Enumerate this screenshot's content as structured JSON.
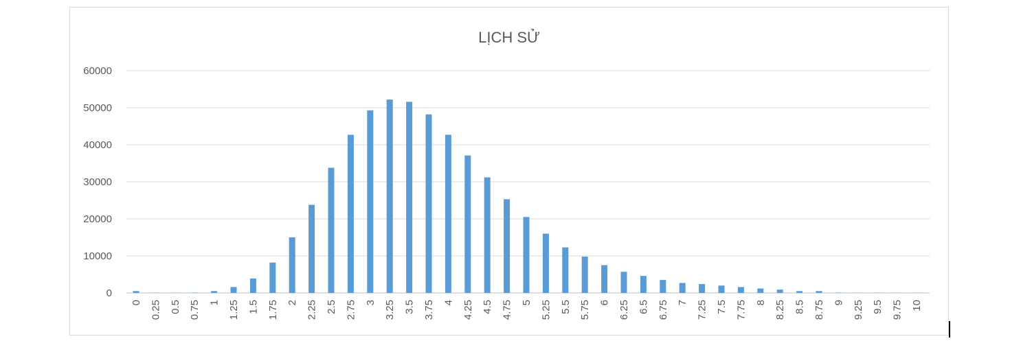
{
  "chart_data": {
    "type": "bar",
    "title": "LỊCH SỬ",
    "xlabel": "",
    "ylabel": "",
    "categories": [
      "0",
      "0.25",
      "0.5",
      "0.75",
      "1",
      "1.25",
      "1.5",
      "1.75",
      "2",
      "2.25",
      "2.5",
      "2.75",
      "3",
      "3.25",
      "3.5",
      "3.75",
      "4",
      "4.25",
      "4.5",
      "4.75",
      "5",
      "5.25",
      "5.5",
      "5.75",
      "6",
      "6.25",
      "6.5",
      "6.75",
      "7",
      "7.25",
      "7.5",
      "7.75",
      "8",
      "8.25",
      "8.5",
      "8.75",
      "9",
      "9.25",
      "9.5",
      "9.75",
      "10"
    ],
    "values": [
      500,
      50,
      50,
      100,
      500,
      1600,
      3900,
      8200,
      15000,
      23800,
      33800,
      42700,
      49300,
      52200,
      51600,
      48200,
      42700,
      37100,
      31200,
      25300,
      20500,
      16000,
      12300,
      9800,
      7500,
      5700,
      4600,
      3500,
      2700,
      2400,
      2000,
      1600,
      1200,
      900,
      500,
      500,
      100,
      50,
      50,
      20,
      20
    ],
    "ylim": [
      0,
      60000
    ],
    "yticks": [
      0,
      10000,
      20000,
      30000,
      40000,
      50000,
      60000
    ],
    "grid": true,
    "legend": "none",
    "bar_color": "#5b9bd5"
  }
}
